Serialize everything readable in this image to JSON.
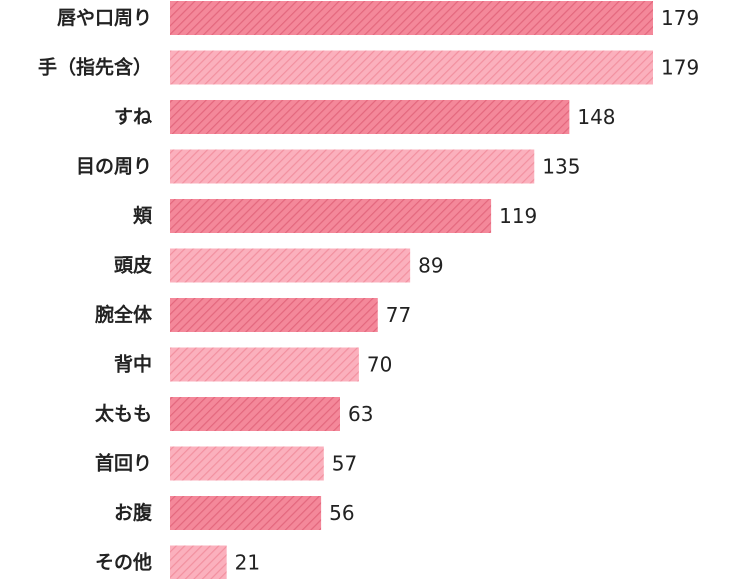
{
  "chart_data": {
    "type": "bar",
    "orientation": "horizontal",
    "categories": [
      "唇や口周り",
      "手（指先含）",
      "すね",
      "目の周り",
      "頬",
      "頭皮",
      "腕全体",
      "背中",
      "太もも",
      "首回り",
      "お腹",
      "その他"
    ],
    "values": [
      179,
      179,
      148,
      135,
      119,
      89,
      77,
      70,
      63,
      57,
      56,
      21
    ],
    "xlim": [
      0,
      179
    ],
    "grid": false,
    "legend": "none",
    "colors": {
      "dark_bar": "#f4889a",
      "dark_hatch": "#e3677d",
      "light_bar": "#fbb0bd",
      "light_hatch": "#f2909f",
      "text": "#222222"
    }
  }
}
